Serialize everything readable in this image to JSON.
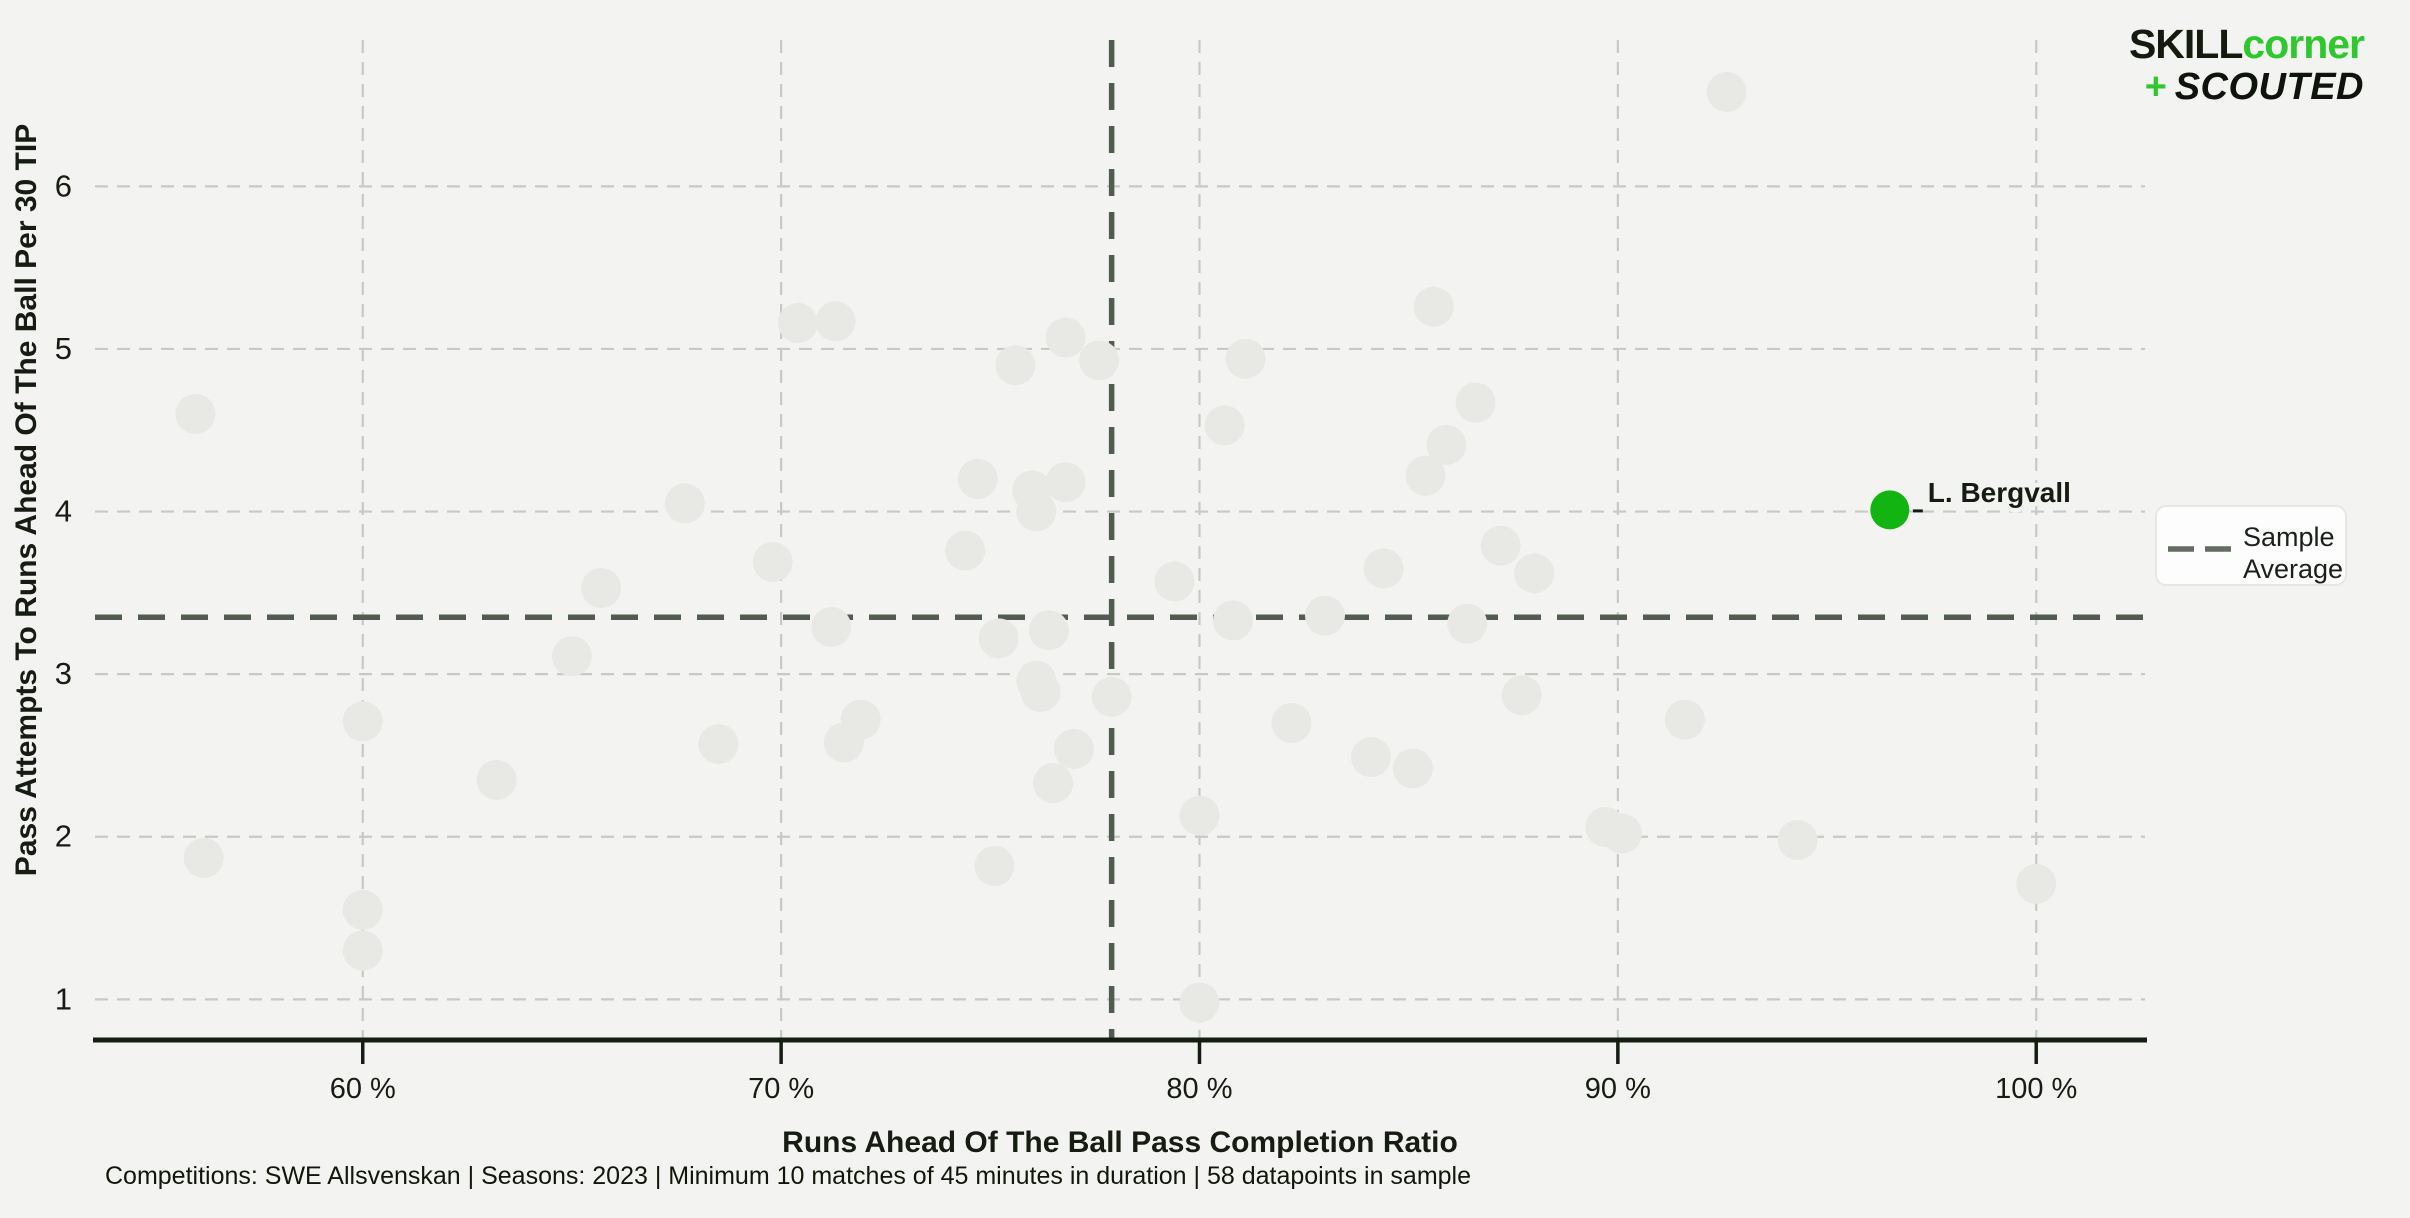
{
  "logo": {
    "skill": "SKILL",
    "corner": "corner",
    "plus": "+",
    "scouted": "SCOUTED"
  },
  "legend": {
    "line1": "Sample",
    "line2": "Average"
  },
  "footer": {
    "note": "Competitions: SWE Allsvenskan | Seasons: 2023 | Minimum 10 matches of 45 minutes in duration | 58 datapoints in sample"
  },
  "colors": {
    "background": "#f3f4f1",
    "point_fill": "#e8e8e5",
    "highlight_fill": "#12b412",
    "grid_light": "#c6cac4",
    "grid_dark": "#515b4f",
    "axis": "#151c11",
    "text_dark": "#161c12",
    "legend_box_fill": "#fcfdfc",
    "legend_box_border": "#e6e8e4",
    "logo_green": "#2ec82e"
  },
  "chart_data": {
    "type": "scatter",
    "title": "",
    "xlabel": "Runs Ahead Of The Ball Pass Completion Ratio",
    "ylabel": "Pass Attempts To Runs Ahead Of The Ball Per 30 TIP",
    "xlim": [
      53.6,
      102.6
    ],
    "ylim": [
      0.75,
      6.9
    ],
    "grid": "dashed",
    "legend_position": "right-middle",
    "legend_label": "Sample Average",
    "x_ticks": [
      {
        "v": 60,
        "label": "60 %"
      },
      {
        "v": 70,
        "label": "70 %"
      },
      {
        "v": 80,
        "label": "80 %"
      },
      {
        "v": 90,
        "label": "90 %"
      },
      {
        "v": 100,
        "label": "100 %"
      }
    ],
    "y_ticks": [
      {
        "v": 1,
        "label": "1"
      },
      {
        "v": 2,
        "label": "2"
      },
      {
        "v": 3,
        "label": "3"
      },
      {
        "v": 4,
        "label": "4"
      },
      {
        "v": 5,
        "label": "5"
      },
      {
        "v": 6,
        "label": "6"
      }
    ],
    "sample_average_x": 77.9,
    "sample_average_y": 3.35,
    "highlight": {
      "name": "L. Bergvall",
      "x": 96.5,
      "y": 4.01
    },
    "points": [
      [
        56.0,
        4.6
      ],
      [
        56.2,
        1.87
      ],
      [
        60.0,
        2.71
      ],
      [
        60.0,
        1.55
      ],
      [
        60.0,
        1.3
      ],
      [
        63.2,
        2.35
      ],
      [
        65.0,
        3.11
      ],
      [
        65.7,
        3.53
      ],
      [
        67.7,
        4.05
      ],
      [
        68.5,
        2.57
      ],
      [
        69.8,
        3.69
      ],
      [
        70.4,
        5.16
      ],
      [
        71.2,
        3.29
      ],
      [
        71.3,
        5.17
      ],
      [
        71.5,
        2.58
      ],
      [
        71.9,
        2.72
      ],
      [
        74.4,
        3.76
      ],
      [
        74.7,
        4.2
      ],
      [
        75.1,
        1.82
      ],
      [
        75.2,
        3.22
      ],
      [
        75.6,
        4.9
      ],
      [
        76.0,
        4.13
      ],
      [
        76.1,
        4.0
      ],
      [
        76.1,
        2.96
      ],
      [
        76.2,
        2.89
      ],
      [
        76.4,
        3.27
      ],
      [
        76.5,
        2.33
      ],
      [
        76.8,
        5.07
      ],
      [
        76.8,
        4.18
      ],
      [
        77.0,
        2.54
      ],
      [
        77.6,
        4.93
      ],
      [
        77.9,
        2.86
      ],
      [
        79.4,
        3.57
      ],
      [
        80.0,
        2.13
      ],
      [
        80.0,
        0.98
      ],
      [
        80.6,
        4.53
      ],
      [
        80.8,
        3.33
      ],
      [
        81.1,
        4.94
      ],
      [
        82.2,
        2.7
      ],
      [
        83.0,
        3.36
      ],
      [
        84.1,
        2.49
      ],
      [
        84.4,
        3.65
      ],
      [
        85.1,
        2.42
      ],
      [
        85.4,
        4.22
      ],
      [
        85.6,
        5.26
      ],
      [
        85.9,
        4.41
      ],
      [
        86.4,
        3.31
      ],
      [
        86.6,
        4.67
      ],
      [
        87.2,
        3.79
      ],
      [
        87.7,
        2.87
      ],
      [
        88.0,
        3.62
      ],
      [
        89.7,
        2.06
      ],
      [
        90.1,
        2.02
      ],
      [
        91.6,
        2.72
      ],
      [
        92.6,
        6.58
      ],
      [
        94.3,
        1.98
      ],
      [
        100.0,
        1.71
      ]
    ]
  }
}
